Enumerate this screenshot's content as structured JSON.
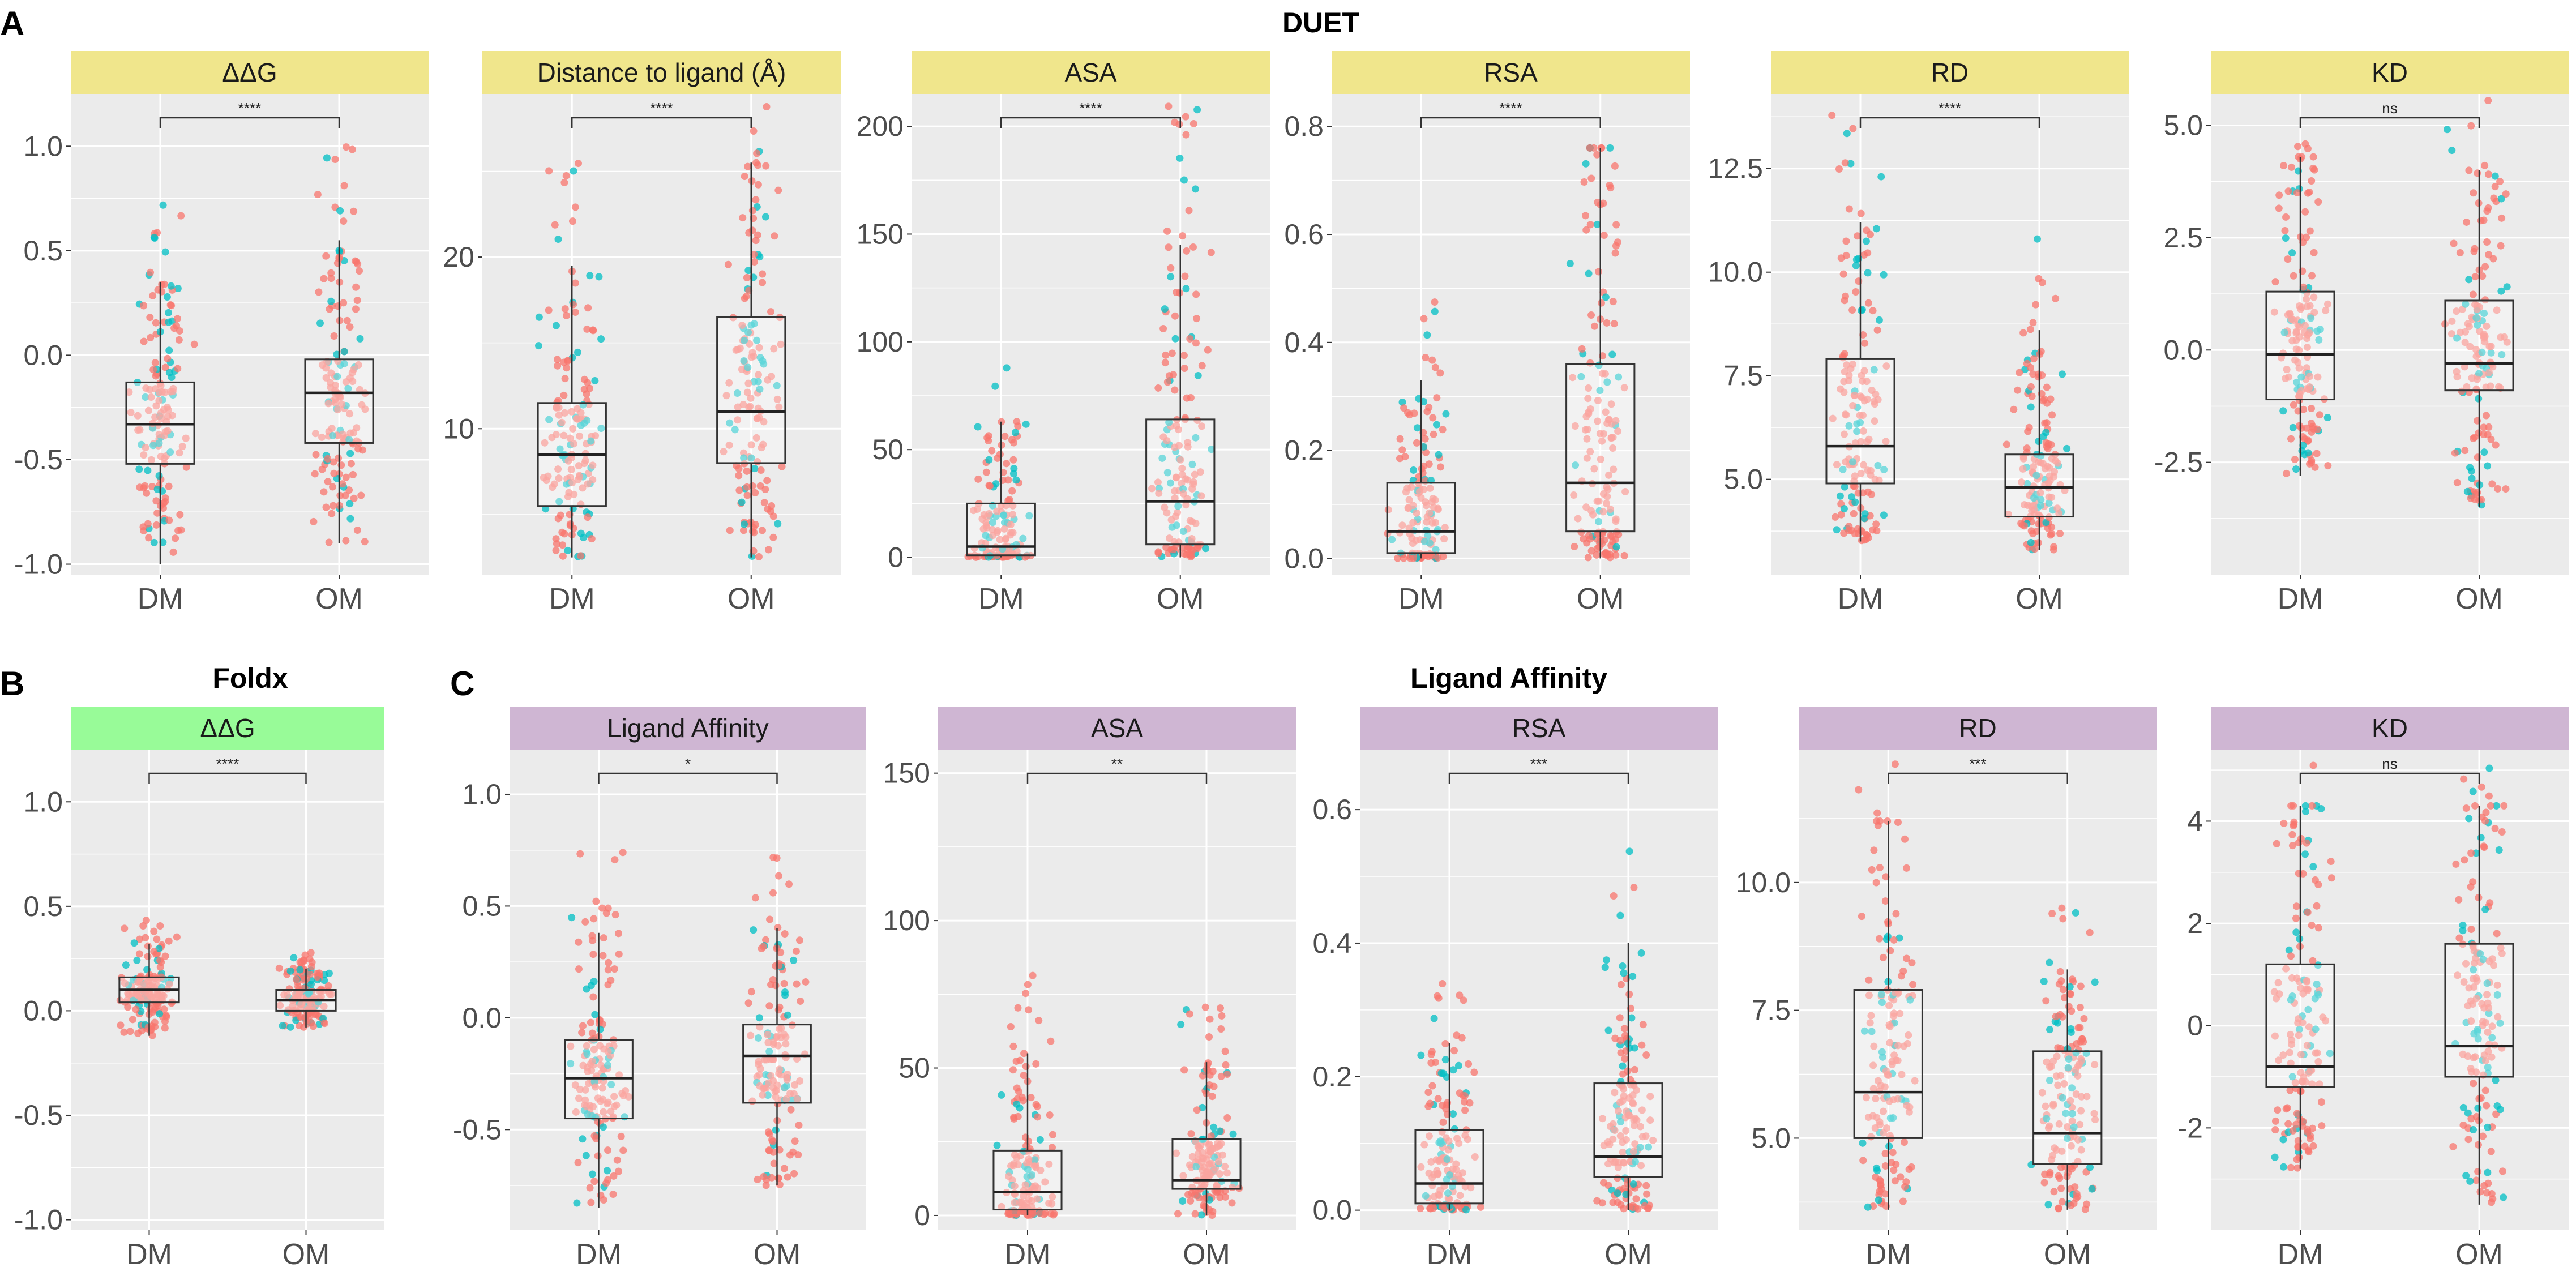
{
  "figure": {
    "panel_letters": [
      "A",
      "B",
      "C"
    ],
    "group_titles": {
      "duet": "DUET",
      "foldx": "Foldx",
      "ligand": "Ligand Affinity"
    }
  },
  "colors": {
    "duet_strip": "#F0E68C",
    "foldx_strip": "#98FB98",
    "ligand_strip": "#CFB6D3",
    "panel_bg": "#EBEBEB",
    "grid": "#FFFFFF",
    "point_red": "#F8766D",
    "point_teal": "#00BFC4"
  },
  "chart_data": [
    {
      "id": "duet-ddg",
      "type": "box",
      "group": "DUET",
      "title": "ΔΔG",
      "categories": [
        "DM",
        "OM"
      ],
      "ylim": [
        -1.05,
        1.25
      ],
      "yticks": [
        -1.0,
        -0.5,
        0.0,
        0.5,
        1.0
      ],
      "ytick_labels": [
        "-1.0",
        "-0.5",
        "0.0",
        "0.5",
        "1.0"
      ],
      "significance": "****",
      "boxes": [
        {
          "label": "DM",
          "min": -1.0,
          "q1": -0.52,
          "median": -0.33,
          "q3": -0.13,
          "max": 0.35
        },
        {
          "label": "OM",
          "min": -0.9,
          "q1": -0.42,
          "median": -0.18,
          "q3": -0.02,
          "max": 0.55
        }
      ]
    },
    {
      "id": "duet-distance",
      "type": "box",
      "group": "DUET",
      "title": "Distance to ligand (Å)",
      "categories": [
        "DM",
        "OM"
      ],
      "ylim": [
        1.5,
        29.5
      ],
      "yticks": [
        10,
        20
      ],
      "ytick_labels": [
        "10",
        "20"
      ],
      "significance": "****",
      "boxes": [
        {
          "label": "DM",
          "min": 2.5,
          "q1": 5.5,
          "median": 8.5,
          "q3": 11.5,
          "max": 19.5
        },
        {
          "label": "OM",
          "min": 2.5,
          "q1": 8,
          "median": 11,
          "q3": 16.5,
          "max": 25.5
        }
      ]
    },
    {
      "id": "duet-asa",
      "type": "box",
      "group": "DUET",
      "title": "ASA",
      "categories": [
        "DM",
        "OM"
      ],
      "ylim": [
        -8,
        215
      ],
      "yticks": [
        0,
        50,
        100,
        150,
        200
      ],
      "ytick_labels": [
        "0",
        "50",
        "100",
        "150",
        "200"
      ],
      "significance": "****",
      "boxes": [
        {
          "label": "DM",
          "min": 0,
          "q1": 1,
          "median": 5,
          "q3": 25,
          "max": 63
        },
        {
          "label": "OM",
          "min": 0,
          "q1": 6,
          "median": 26,
          "q3": 64,
          "max": 145
        }
      ]
    },
    {
      "id": "duet-rsa",
      "type": "box",
      "group": "DUET",
      "title": "RSA",
      "categories": [
        "DM",
        "OM"
      ],
      "ylim": [
        -0.03,
        0.86
      ],
      "yticks": [
        0.0,
        0.2,
        0.4,
        0.6,
        0.8
      ],
      "ytick_labels": [
        "0.0",
        "0.2",
        "0.4",
        "0.6",
        "0.8"
      ],
      "significance": "****",
      "boxes": [
        {
          "label": "DM",
          "min": 0,
          "q1": 0.01,
          "median": 0.05,
          "q3": 0.14,
          "max": 0.33
        },
        {
          "label": "OM",
          "min": 0,
          "q1": 0.05,
          "median": 0.14,
          "q3": 0.36,
          "max": 0.76
        }
      ]
    },
    {
      "id": "duet-rd",
      "type": "box",
      "group": "DUET",
      "title": "RD",
      "categories": [
        "DM",
        "OM"
      ],
      "ylim": [
        2.7,
        14.3
      ],
      "yticks": [
        5.0,
        7.5,
        10.0,
        12.5
      ],
      "ytick_labels": [
        "5.0",
        "7.5",
        "10.0",
        "12.5"
      ],
      "significance": "****",
      "boxes": [
        {
          "label": "DM",
          "min": 3.5,
          "q1": 4.9,
          "median": 5.8,
          "q3": 7.9,
          "max": 11.2
        },
        {
          "label": "OM",
          "min": 3.3,
          "q1": 4.1,
          "median": 4.8,
          "q3": 5.6,
          "max": 8.6
        }
      ]
    },
    {
      "id": "duet-kd",
      "type": "box",
      "group": "DUET",
      "title": "KD",
      "categories": [
        "DM",
        "OM"
      ],
      "ylim": [
        -5,
        5.7
      ],
      "yticks": [
        -2.5,
        0.0,
        2.5,
        5.0
      ],
      "ytick_labels": [
        "-2.5",
        "0.0",
        "2.5",
        "5.0"
      ],
      "significance": "ns",
      "boxes": [
        {
          "label": "DM",
          "min": -2.8,
          "q1": -1.1,
          "median": -0.1,
          "q3": 1.3,
          "max": 4.3
        },
        {
          "label": "OM",
          "min": -3.5,
          "q1": -0.9,
          "median": -0.3,
          "q3": 1.1,
          "max": 4.0
        }
      ]
    },
    {
      "id": "foldx-ddg",
      "type": "box",
      "group": "Foldx",
      "title": "ΔΔG",
      "categories": [
        "DM",
        "OM"
      ],
      "ylim": [
        -1.05,
        1.25
      ],
      "yticks": [
        -1.0,
        -0.5,
        0.0,
        0.5,
        1.0
      ],
      "ytick_labels": [
        "-1.0",
        "-0.5",
        "0.0",
        "0.5",
        "1.0"
      ],
      "significance": "****",
      "boxes": [
        {
          "label": "DM",
          "min": -0.12,
          "q1": 0.04,
          "median": 0.1,
          "q3": 0.16,
          "max": 0.32
        },
        {
          "label": "OM",
          "min": -0.08,
          "q1": 0.0,
          "median": 0.05,
          "q3": 0.1,
          "max": 0.2
        }
      ]
    },
    {
      "id": "lig-affinity",
      "type": "box",
      "group": "Ligand Affinity",
      "title": "Ligand Affinity",
      "categories": [
        "DM",
        "OM"
      ],
      "ylim": [
        -0.95,
        1.2
      ],
      "yticks": [
        -0.5,
        0.0,
        0.5,
        1.0
      ],
      "ytick_labels": [
        "-0.5",
        "0.0",
        "0.5",
        "1.0"
      ],
      "significance": "*",
      "boxes": [
        {
          "label": "DM",
          "min": -0.85,
          "q1": -0.45,
          "median": -0.27,
          "q3": -0.1,
          "max": 0.38
        },
        {
          "label": "OM",
          "min": -0.75,
          "q1": -0.38,
          "median": -0.17,
          "q3": -0.03,
          "max": 0.4
        }
      ]
    },
    {
      "id": "lig-asa",
      "type": "box",
      "group": "Ligand Affinity",
      "title": "ASA",
      "categories": [
        "DM",
        "OM"
      ],
      "ylim": [
        -5,
        158
      ],
      "yticks": [
        0,
        50,
        100,
        150
      ],
      "ytick_labels": [
        "0",
        "50",
        "100",
        "150"
      ],
      "significance": "**",
      "boxes": [
        {
          "label": "DM",
          "min": 0,
          "q1": 2,
          "median": 8,
          "q3": 22,
          "max": 55
        },
        {
          "label": "OM",
          "min": 0,
          "q1": 9,
          "median": 12,
          "q3": 26,
          "max": 52
        }
      ]
    },
    {
      "id": "lig-rsa",
      "type": "box",
      "group": "Ligand Affinity",
      "title": "RSA",
      "categories": [
        "DM",
        "OM"
      ],
      "ylim": [
        -0.03,
        0.69
      ],
      "yticks": [
        0.0,
        0.2,
        0.4,
        0.6
      ],
      "ytick_labels": [
        "0.0",
        "0.2",
        "0.4",
        "0.6"
      ],
      "significance": "***",
      "boxes": [
        {
          "label": "DM",
          "min": 0,
          "q1": 0.01,
          "median": 0.04,
          "q3": 0.12,
          "max": 0.25
        },
        {
          "label": "OM",
          "min": 0,
          "q1": 0.05,
          "median": 0.08,
          "q3": 0.19,
          "max": 0.4
        }
      ]
    },
    {
      "id": "lig-rd",
      "type": "box",
      "group": "Ligand Affinity",
      "title": "RD",
      "categories": [
        "DM",
        "OM"
      ],
      "ylim": [
        3.2,
        12.6
      ],
      "yticks": [
        5.0,
        7.5,
        10.0
      ],
      "ytick_labels": [
        "5.0",
        "7.5",
        "10.0"
      ],
      "significance": "***",
      "boxes": [
        {
          "label": "DM",
          "min": 3.6,
          "q1": 5.0,
          "median": 5.9,
          "q3": 7.9,
          "max": 11.2
        },
        {
          "label": "OM",
          "min": 3.6,
          "q1": 4.5,
          "median": 5.1,
          "q3": 6.7,
          "max": 8.3
        }
      ]
    },
    {
      "id": "lig-kd",
      "type": "box",
      "group": "Ligand Affinity",
      "title": "KD",
      "categories": [
        "DM",
        "OM"
      ],
      "ylim": [
        -4,
        5.4
      ],
      "yticks": [
        -2,
        0,
        2,
        4
      ],
      "ytick_labels": [
        "-2",
        "0",
        "2",
        "4"
      ],
      "significance": "ns",
      "boxes": [
        {
          "label": "DM",
          "min": -2.8,
          "q1": -1.2,
          "median": -0.8,
          "q3": 1.2,
          "max": 4.3
        },
        {
          "label": "OM",
          "min": -3.5,
          "q1": -1.0,
          "median": -0.4,
          "q3": 1.6,
          "max": 4.3
        }
      ]
    }
  ]
}
